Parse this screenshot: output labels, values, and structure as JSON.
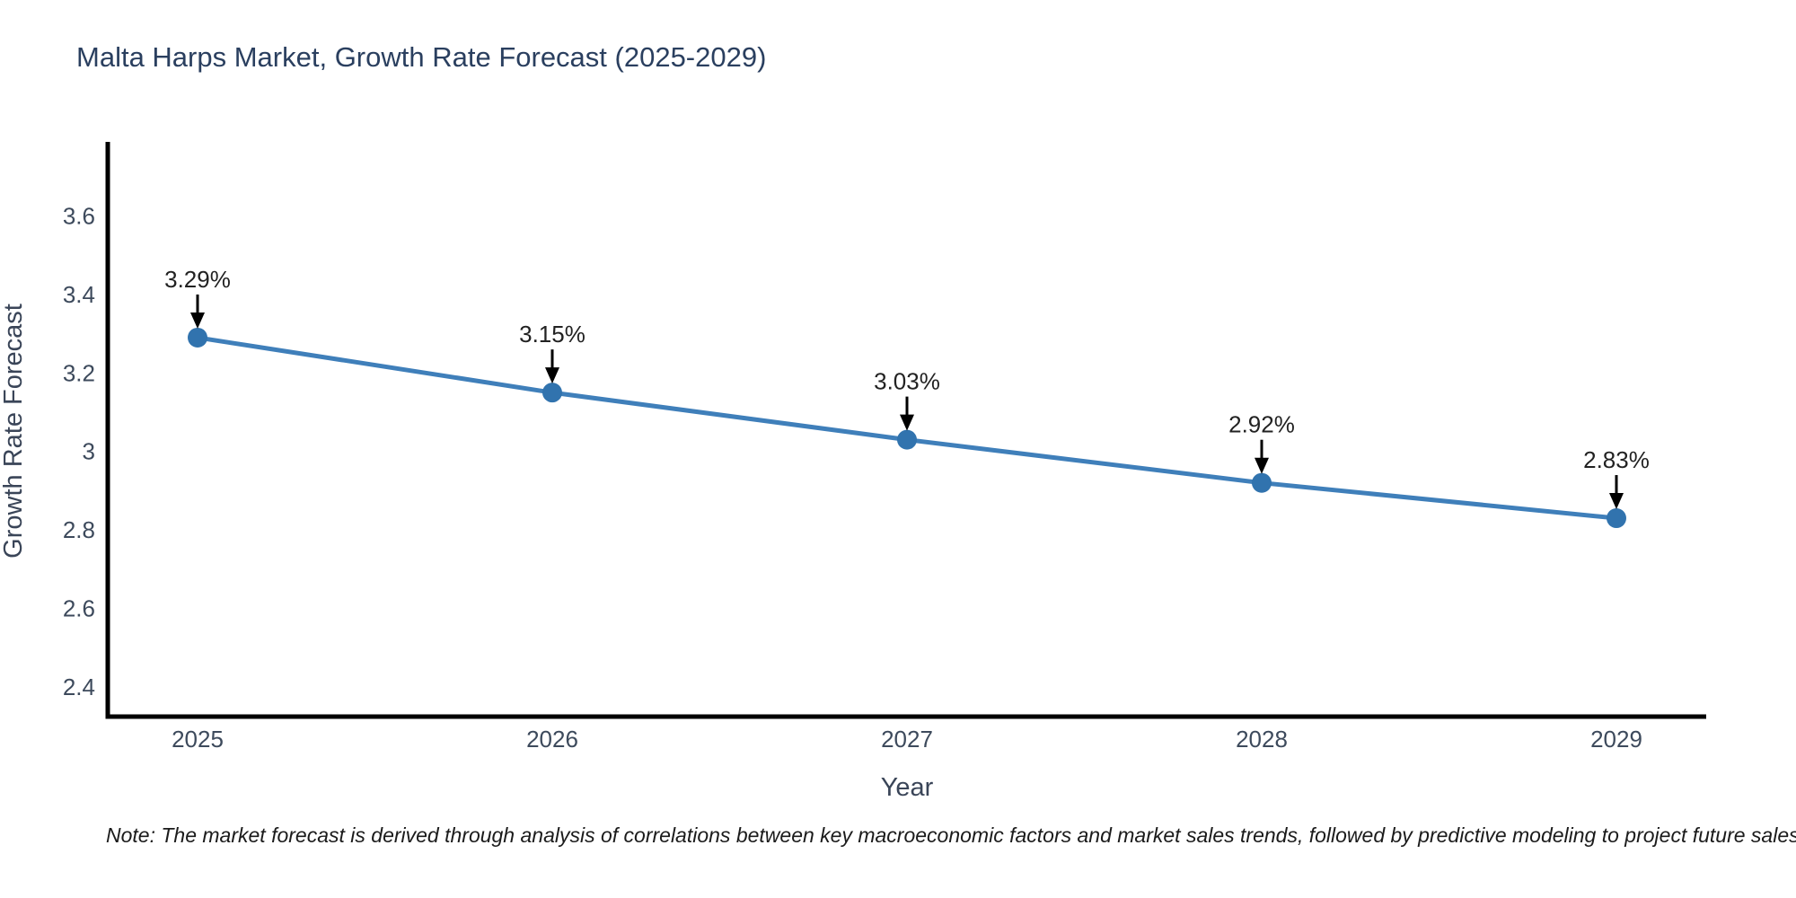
{
  "title": "Malta Harps Market, Growth Rate Forecast (2025-2029)",
  "note": "Note: The market forecast is derived through analysis of correlations between key macroeconomic factors and market sales trends, followed by predictive modeling to project future sales",
  "chart_data": {
    "type": "line",
    "title": "Malta Harps Market, Growth Rate Forecast (2025-2029)",
    "xlabel": "Year",
    "ylabel": "Growth Rate Forecast",
    "categories": [
      "2025",
      "2026",
      "2027",
      "2028",
      "2029"
    ],
    "values": [
      3.29,
      3.15,
      3.03,
      2.92,
      2.83
    ],
    "point_labels": [
      "3.29%",
      "3.15%",
      "3.03%",
      "2.92%",
      "2.83%"
    ],
    "yticks": [
      {
        "value": 2.4,
        "label": "2.4"
      },
      {
        "value": 2.6,
        "label": "2.6"
      },
      {
        "value": 2.8,
        "label": "2.8"
      },
      {
        "value": 3.0,
        "label": "3"
      },
      {
        "value": 3.2,
        "label": "3.2"
      },
      {
        "value": 3.4,
        "label": "3.4"
      },
      {
        "value": 3.6,
        "label": "3.6"
      }
    ],
    "ylim": [
      2.32,
      3.784
    ],
    "grid": false,
    "legend": "none",
    "marker_size": 11,
    "colors": {
      "line": "#3f7fba",
      "marker": "#3173ae",
      "axis": "#000000",
      "tick_text": "#3d4a5c",
      "title_text": "#2a3f5f",
      "axis_title_text": "#3a4558",
      "annotation_text": "#222222",
      "note_text": "#1b1b1b",
      "arrow": "#000000",
      "background": "#ffffff"
    }
  }
}
